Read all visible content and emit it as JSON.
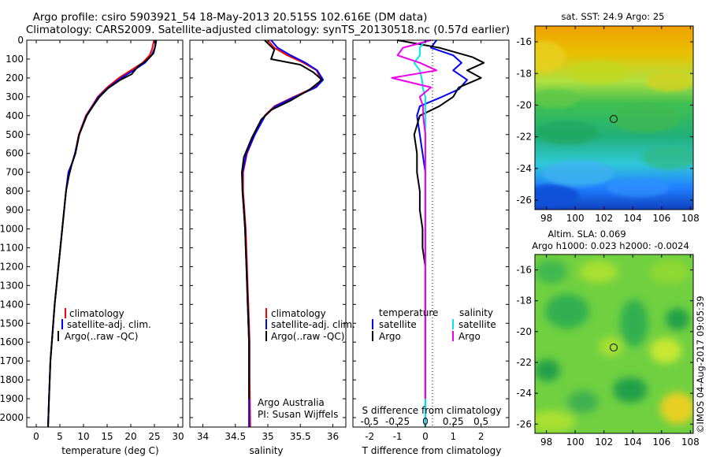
{
  "header": {
    "line1": "Argo profile: csiro 5903921_54 18-May-2013 20.515S 102.616E (DM data)",
    "line2": "Climatology: CARS2009. Satellite-adjusted climatology: synTS_20130518.nc (0.57d earlier)"
  },
  "colors": {
    "climatology": "#ff0000",
    "satellite": "#0000ff",
    "argo": "#000000",
    "sat_salinity": "#00e5ee",
    "argo_salinity": "#ee00ee"
  },
  "side_stamp": "©IMOS 04-Aug-2017 09:05:39",
  "chart_data": [
    {
      "type": "line",
      "xlabel": "temperature (deg C)",
      "ylabel": "",
      "xlim": [
        -2,
        31
      ],
      "ylim": [
        2050,
        0
      ],
      "xticks": [
        "0",
        "5",
        "10",
        "15",
        "20",
        "25",
        "30"
      ],
      "yticks": [
        "0",
        "100",
        "200",
        "300",
        "400",
        "500",
        "600",
        "700",
        "800",
        "900",
        "1000",
        "1100",
        "1200",
        "1300",
        "1400",
        "1500",
        "1600",
        "1700",
        "1800",
        "1900",
        "2000"
      ],
      "legend": [
        "climatology",
        "satellite-adj. clim.",
        "Argo(..raw -QC)"
      ],
      "legend_position": "lower-center",
      "series": [
        {
          "name": "climatology",
          "color": "#ff0000",
          "x": [
            24.9,
            24.6,
            24.0,
            22.5,
            20.0,
            17.5,
            15.0,
            13.0,
            11.8,
            10.5,
            9.0,
            8.2,
            7.6,
            6.8,
            6.3,
            5.9,
            5.5,
            5.1,
            4.7,
            4.3,
            3.9,
            3.6,
            3.3,
            3.0,
            2.7,
            2.5
          ],
          "y": [
            0,
            40,
            80,
            120,
            160,
            200,
            250,
            300,
            350,
            400,
            500,
            600,
            650,
            700,
            800,
            900,
            1000,
            1100,
            1200,
            1300,
            1400,
            1500,
            1600,
            1700,
            1900,
            2050
          ]
        },
        {
          "name": "satellite-adj. clim.",
          "color": "#0000ff",
          "x": [
            25.3,
            25.1,
            24.4,
            23.0,
            20.6,
            18.0,
            15.3,
            13.2,
            11.9,
            10.6,
            9.1,
            8.2,
            7.6,
            6.8,
            6.3,
            5.9,
            5.5,
            5.1,
            4.7,
            4.3,
            3.9,
            3.6,
            3.3,
            3.0,
            2.7,
            2.5
          ],
          "y": [
            0,
            40,
            80,
            120,
            160,
            200,
            250,
            300,
            350,
            400,
            500,
            600,
            650,
            700,
            800,
            900,
            1000,
            1100,
            1200,
            1300,
            1400,
            1500,
            1600,
            1700,
            1900,
            2050
          ]
        },
        {
          "name": "Argo(..raw -QC)",
          "color": "#000000",
          "x": [
            25.4,
            25.2,
            24.8,
            23.2,
            21.5,
            20.2,
            17.8,
            15.2,
            13.4,
            12.0,
            10.7,
            9.1,
            8.3,
            7.5,
            6.9,
            6.3,
            5.9,
            5.5,
            5.1,
            4.7,
            4.3,
            3.9,
            3.6,
            3.3,
            3.0,
            2.7,
            2.5
          ],
          "y": [
            0,
            30,
            70,
            110,
            140,
            180,
            210,
            255,
            300,
            350,
            400,
            500,
            600,
            660,
            720,
            800,
            900,
            1000,
            1100,
            1200,
            1300,
            1400,
            1500,
            1600,
            1700,
            1900,
            2050
          ]
        }
      ]
    },
    {
      "type": "line",
      "xlabel": "salinity",
      "ylabel": "",
      "xlim": [
        33.8,
        36.2
      ],
      "ylim": [
        2050,
        0
      ],
      "xticks": [
        "34",
        "34.5",
        "35",
        "35.5",
        "36"
      ],
      "legend": [
        "climatology",
        "satellite-adj. clim.",
        "Argo(..raw -QC)"
      ],
      "legend_position": "lower-right",
      "annotation": [
        "Argo Australia",
        "PI: Susan Wijffels"
      ],
      "series": [
        {
          "name": "climatology",
          "color": "#ff0000",
          "x": [
            35.0,
            35.1,
            35.3,
            35.55,
            35.75,
            35.82,
            35.72,
            35.4,
            35.1,
            34.95,
            34.8,
            34.68,
            34.62,
            34.62,
            34.64,
            34.66,
            34.67,
            34.68,
            34.69,
            34.7,
            34.71,
            34.72,
            34.72,
            34.73
          ],
          "y": [
            0,
            40,
            80,
            120,
            160,
            210,
            250,
            300,
            350,
            400,
            500,
            600,
            700,
            800,
            900,
            1000,
            1100,
            1200,
            1300,
            1400,
            1500,
            1600,
            1800,
            2050
          ]
        },
        {
          "name": "satellite-adj. clim.",
          "color": "#0000ff",
          "x": [
            35.05,
            35.15,
            35.35,
            35.58,
            35.76,
            35.85,
            35.74,
            35.42,
            35.12,
            34.96,
            34.8,
            34.67,
            34.61,
            34.61,
            34.63,
            34.65,
            34.66,
            34.67,
            34.68,
            34.69,
            34.7,
            34.71,
            34.71,
            34.71
          ],
          "y": [
            0,
            40,
            80,
            120,
            160,
            210,
            250,
            300,
            350,
            400,
            500,
            600,
            700,
            800,
            900,
            1000,
            1100,
            1200,
            1300,
            1400,
            1500,
            1600,
            1800,
            2050
          ]
        },
        {
          "name": "Argo(..raw -QC)",
          "color": "#000000",
          "x": [
            34.95,
            35.1,
            35.05,
            35.5,
            35.7,
            35.83,
            35.65,
            35.35,
            35.05,
            34.9,
            34.75,
            34.63,
            34.6,
            34.61,
            34.63,
            34.65,
            34.66,
            34.67,
            34.68,
            34.69,
            34.7,
            34.71,
            34.71
          ],
          "y": [
            0,
            50,
            100,
            130,
            170,
            210,
            260,
            320,
            370,
            420,
            520,
            620,
            700,
            800,
            900,
            1000,
            1100,
            1200,
            1300,
            1400,
            1500,
            1600,
            1900
          ]
        }
      ]
    },
    {
      "type": "line",
      "xlabel": "T difference from climatology",
      "top_axis_label": "S difference from climatology",
      "xlim": [
        -2.6,
        3.0
      ],
      "top_xlim": [
        -0.65,
        0.75
      ],
      "ylim": [
        2050,
        0
      ],
      "xticks": [
        "-2",
        "-1",
        "0",
        "1",
        "2"
      ],
      "top_xticks": [
        "-0.5",
        "-0.25",
        "0",
        "0.25",
        "0.5"
      ],
      "legend_titles": [
        "temperature",
        "salinity"
      ],
      "legend": [
        "satellite",
        "Argo",
        "satellite",
        "Argo"
      ],
      "legend_position": "lower-center",
      "series": [
        {
          "name": "satellite",
          "color": "#0000ff",
          "x": [
            0.4,
            0.2,
            1.0,
            1.3,
            1.0,
            1.5,
            1.2,
            0.6,
            -0.2,
            -0.3,
            -0.2,
            -0.1,
            0.0,
            0.0,
            0.0,
            0.0,
            0.0,
            0.0,
            0.0,
            0.0,
            0.0,
            0.0,
            0.0,
            0.0
          ],
          "y": [
            0,
            40,
            80,
            120,
            160,
            210,
            260,
            300,
            350,
            400,
            500,
            600,
            700,
            800,
            900,
            1000,
            1100,
            1200,
            1300,
            1400,
            1500,
            1600,
            1800,
            2050
          ]
        },
        {
          "name": "Argo",
          "color": "#000000",
          "x": [
            -1.0,
            0.5,
            1.7,
            2.1,
            1.5,
            2.0,
            1.2,
            1.0,
            0.5,
            -0.2,
            -0.4,
            -0.3,
            -0.3,
            -0.2,
            -0.2,
            -0.1,
            -0.1,
            0.0,
            0.0,
            0.0,
            0.0,
            0.0,
            0.0
          ],
          "y": [
            0,
            40,
            90,
            120,
            160,
            200,
            250,
            300,
            350,
            400,
            500,
            600,
            700,
            800,
            900,
            1000,
            1100,
            1200,
            1300,
            1400,
            1500,
            1600,
            1900
          ]
        },
        {
          "name": "satellite",
          "color": "#00e5ee",
          "x": [
            0.0,
            -0.05,
            -0.05,
            -0.1,
            -0.05,
            -0.03,
            -0.02,
            0.0,
            0.0,
            0.0,
            0.0,
            0.0,
            0.0,
            0.0,
            0.0,
            0.0,
            0.0,
            0.0,
            0.0,
            0.0,
            0.0,
            0.0,
            0.0,
            0.0
          ],
          "y": [
            0,
            40,
            80,
            120,
            160,
            210,
            260,
            300,
            350,
            400,
            500,
            600,
            700,
            800,
            900,
            1000,
            1100,
            1200,
            1300,
            1400,
            1500,
            1600,
            1800,
            2050
          ]
        },
        {
          "name": "Argo",
          "color": "#ee00ee",
          "x": [
            0.05,
            -0.2,
            -0.25,
            -0.05,
            0.1,
            -0.3,
            0.05,
            -0.05,
            -0.02,
            -0.02,
            0.0,
            0.0,
            0.0,
            0.0,
            0.0,
            0.0,
            0.0,
            0.0,
            0.0,
            0.0,
            0.0,
            0.0,
            0.0
          ],
          "y": [
            0,
            40,
            80,
            120,
            160,
            200,
            250,
            300,
            350,
            400,
            500,
            600,
            700,
            800,
            900,
            1000,
            1100,
            1200,
            1300,
            1400,
            1500,
            1600,
            1900
          ]
        }
      ]
    },
    {
      "type": "heatmap",
      "title": "sat. SST: 24.9 Argo: 25",
      "xlim": [
        97.2,
        108.2
      ],
      "ylim": [
        -26.6,
        -15
      ],
      "xticks": [
        "98",
        "100",
        "102",
        "104",
        "106",
        "108"
      ],
      "yticks": [
        "-16",
        "-18",
        "-20",
        "-22",
        "-24",
        "-26"
      ],
      "marker": {
        "lon": 102.616,
        "lat": -20.515
      }
    },
    {
      "type": "heatmap",
      "title": "Altim. SLA: 0.069",
      "subtitle": "Argo h1000: 0.023 h2000: -0.0024",
      "xlim": [
        97.2,
        108.2
      ],
      "ylim": [
        -26.6,
        -15
      ],
      "xticks": [
        "98",
        "100",
        "102",
        "104",
        "106",
        "108"
      ],
      "yticks": [
        "-16",
        "-18",
        "-20",
        "-22",
        "-24",
        "-26"
      ],
      "marker": {
        "lon": 102.616,
        "lat": -20.515
      }
    }
  ]
}
